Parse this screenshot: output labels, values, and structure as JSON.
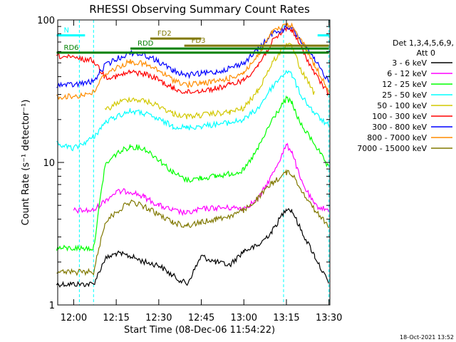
{
  "chart_data": {
    "type": "line",
    "title": "RHESSI Observing Summary Count Rates",
    "xlabel": "Start Time (08-Dec-06 11:54:22)",
    "ylabel": "Count Rate (s⁻¹ detector⁻¹)",
    "y_scale": "log",
    "ylim": [
      1,
      100
    ],
    "xlim": [
      "11:54:22",
      "13:30:20"
    ],
    "x_ticks": [
      "12:00",
      "12:15",
      "12:30",
      "12:45",
      "13:00",
      "13:15",
      "13:30"
    ],
    "y_ticks": [
      "1",
      "10",
      "100"
    ],
    "det_label": "Det 1,3,4,5,6,9,",
    "att_label": "Att 0",
    "timestamp": "18-Oct-2021 13:52",
    "series": [
      {
        "name": "3 - 6 keV",
        "color": "#000000",
        "points": [
          [
            "11:54",
            1.4
          ],
          [
            "12:00",
            1.4
          ],
          [
            "12:07",
            1.4
          ],
          [
            "12:11",
            2.1
          ],
          [
            "12:15",
            2.3
          ],
          [
            "12:20",
            2.2
          ],
          [
            "12:25",
            2.0
          ],
          [
            "12:30",
            1.9
          ],
          [
            "12:35",
            1.6
          ],
          [
            "12:40",
            1.4
          ],
          [
            "12:45",
            2.2
          ],
          [
            "12:50",
            2.0
          ],
          [
            "12:55",
            1.9
          ],
          [
            "13:00",
            2.4
          ],
          [
            "13:05",
            2.6
          ],
          [
            "13:10",
            3.3
          ],
          [
            "13:15",
            4.8
          ],
          [
            "13:17",
            4.6
          ],
          [
            "13:20",
            3.4
          ],
          [
            "13:25",
            2.2
          ],
          [
            "13:30",
            1.4
          ]
        ]
      },
      {
        "name": "6 - 12 keV",
        "color": "#ff00ff",
        "points": [
          [
            "12:00",
            4.6
          ],
          [
            "12:07",
            4.6
          ],
          [
            "12:11",
            5.4
          ],
          [
            "12:15",
            6.2
          ],
          [
            "12:20",
            6.3
          ],
          [
            "12:25",
            5.7
          ],
          [
            "12:30",
            5.0
          ],
          [
            "12:35",
            4.6
          ],
          [
            "12:40",
            4.4
          ],
          [
            "12:45",
            4.7
          ],
          [
            "12:50",
            4.8
          ],
          [
            "12:55",
            4.8
          ],
          [
            "13:00",
            4.8
          ],
          [
            "13:05",
            5.5
          ],
          [
            "13:10",
            8.2
          ],
          [
            "13:15",
            13.2
          ],
          [
            "13:17",
            12.0
          ],
          [
            "13:20",
            7.5
          ],
          [
            "13:25",
            5.0
          ],
          [
            "13:30",
            4.6
          ]
        ]
      },
      {
        "name": "12 - 25 keV",
        "color": "#00ff00",
        "points": [
          [
            "11:54",
            2.5
          ],
          [
            "12:00",
            2.5
          ],
          [
            "12:07",
            2.5
          ],
          [
            "12:11",
            9.5
          ],
          [
            "12:15",
            11.5
          ],
          [
            "12:20",
            13.0
          ],
          [
            "12:25",
            12.5
          ],
          [
            "12:30",
            10.5
          ],
          [
            "12:35",
            8.5
          ],
          [
            "12:40",
            7.5
          ],
          [
            "12:45",
            7.8
          ],
          [
            "12:50",
            8.0
          ],
          [
            "12:55",
            8.3
          ],
          [
            "13:00",
            8.8
          ],
          [
            "13:05",
            12.5
          ],
          [
            "13:10",
            20.0
          ],
          [
            "13:15",
            28.0
          ],
          [
            "13:17",
            26.0
          ],
          [
            "13:20",
            18.5
          ],
          [
            "13:25",
            13.5
          ],
          [
            "13:30",
            9.0
          ]
        ]
      },
      {
        "name": "25 - 50 keV",
        "color": "#00ffff",
        "points": [
          [
            "11:54",
            13.5
          ],
          [
            "12:00",
            12.5
          ],
          [
            "12:07",
            15.0
          ],
          [
            "12:11",
            19.0
          ],
          [
            "12:15",
            21.0
          ],
          [
            "12:20",
            23.0
          ],
          [
            "12:25",
            22.0
          ],
          [
            "12:30",
            20.0
          ],
          [
            "12:35",
            18.0
          ],
          [
            "12:40",
            17.5
          ],
          [
            "12:45",
            18.0
          ],
          [
            "12:50",
            18.5
          ],
          [
            "12:55",
            19.0
          ],
          [
            "13:00",
            20.0
          ],
          [
            "13:05",
            24.0
          ],
          [
            "13:10",
            34.0
          ],
          [
            "13:15",
            44.0
          ],
          [
            "13:17",
            41.0
          ],
          [
            "13:20",
            30.0
          ],
          [
            "13:25",
            22.0
          ],
          [
            "13:30",
            18.0
          ]
        ]
      },
      {
        "name": "50 - 100 keV",
        "color": "#d2c800",
        "points": [
          [
            "12:11",
            23.0
          ],
          [
            "12:15",
            26.0
          ],
          [
            "12:20",
            28.0
          ],
          [
            "12:25",
            27.0
          ],
          [
            "12:30",
            25.0
          ],
          [
            "12:35",
            22.0
          ],
          [
            "12:40",
            21.0
          ],
          [
            "12:45",
            21.5
          ],
          [
            "12:50",
            22.0
          ],
          [
            "12:55",
            22.5
          ],
          [
            "13:00",
            24.0
          ],
          [
            "13:05",
            32.0
          ],
          [
            "13:10",
            50.0
          ],
          [
            "13:15",
            68.0
          ],
          [
            "13:17",
            64.0
          ],
          [
            "13:20",
            45.0
          ],
          [
            "13:25",
            30.0
          ]
        ]
      },
      {
        "name": "100 - 300 keV",
        "color": "#ff0000",
        "points": [
          [
            "11:54",
            56.0
          ],
          [
            "12:00",
            54.0
          ],
          [
            "12:07",
            52.0
          ],
          [
            "12:11",
            40.0
          ],
          [
            "12:15",
            40.0
          ],
          [
            "12:20",
            43.0
          ],
          [
            "12:25",
            42.0
          ],
          [
            "12:30",
            38.0
          ],
          [
            "12:35",
            33.0
          ],
          [
            "12:40",
            31.0
          ],
          [
            "12:45",
            32.0
          ],
          [
            "12:50",
            33.0
          ],
          [
            "12:55",
            35.0
          ],
          [
            "13:00",
            38.0
          ],
          [
            "13:05",
            48.0
          ],
          [
            "13:10",
            70.0
          ],
          [
            "13:15",
            88.0
          ],
          [
            "13:17",
            85.0
          ],
          [
            "13:20",
            65.0
          ],
          [
            "13:25",
            42.0
          ],
          [
            "13:30",
            30.0
          ]
        ]
      },
      {
        "name": "300 - 800 keV",
        "color": "#0000ff",
        "points": [
          [
            "11:54",
            35.0
          ],
          [
            "12:00",
            35.0
          ],
          [
            "12:07",
            37.0
          ],
          [
            "12:11",
            48.0
          ],
          [
            "12:15",
            53.0
          ],
          [
            "12:20",
            59.0
          ],
          [
            "12:25",
            57.0
          ],
          [
            "12:30",
            51.0
          ],
          [
            "12:35",
            44.0
          ],
          [
            "12:40",
            41.0
          ],
          [
            "12:45",
            42.0
          ],
          [
            "12:50",
            43.0
          ],
          [
            "12:55",
            46.0
          ],
          [
            "13:00",
            50.0
          ],
          [
            "13:05",
            62.0
          ],
          [
            "13:10",
            80.0
          ],
          [
            "13:15",
            88.0
          ],
          [
            "13:17",
            87.0
          ],
          [
            "13:20",
            72.0
          ],
          [
            "13:25",
            52.0
          ],
          [
            "13:30",
            37.0
          ]
        ]
      },
      {
        "name": "800 - 7000 keV",
        "color": "#ff8c00",
        "points": [
          [
            "11:54",
            29.0
          ],
          [
            "12:00",
            29.0
          ],
          [
            "12:07",
            31.0
          ],
          [
            "12:11",
            42.0
          ],
          [
            "12:15",
            46.0
          ],
          [
            "12:20",
            51.0
          ],
          [
            "12:25",
            49.0
          ],
          [
            "12:30",
            44.0
          ],
          [
            "12:35",
            38.0
          ],
          [
            "12:40",
            35.0
          ],
          [
            "12:45",
            36.0
          ],
          [
            "12:50",
            37.0
          ],
          [
            "12:55",
            39.0
          ],
          [
            "13:00",
            43.0
          ],
          [
            "13:05",
            56.0
          ],
          [
            "13:10",
            82.0
          ],
          [
            "13:15",
            92.0
          ],
          [
            "13:17",
            90.0
          ],
          [
            "13:20",
            74.0
          ],
          [
            "13:25",
            48.0
          ],
          [
            "13:30",
            32.0
          ]
        ]
      },
      {
        "name": "7000 - 15000 keV",
        "color": "#807800",
        "points": [
          [
            "11:54",
            1.7
          ],
          [
            "12:00",
            1.7
          ],
          [
            "12:07",
            1.7
          ],
          [
            "12:11",
            3.8
          ],
          [
            "12:15",
            4.5
          ],
          [
            "12:20",
            5.3
          ],
          [
            "12:25",
            4.9
          ],
          [
            "12:30",
            4.3
          ],
          [
            "12:35",
            3.8
          ],
          [
            "12:40",
            3.6
          ],
          [
            "12:45",
            3.8
          ],
          [
            "12:50",
            4.0
          ],
          [
            "12:55",
            4.2
          ],
          [
            "13:00",
            4.6
          ],
          [
            "13:05",
            5.6
          ],
          [
            "13:10",
            7.2
          ],
          [
            "13:15",
            8.5
          ],
          [
            "13:17",
            8.3
          ],
          [
            "13:20",
            6.6
          ],
          [
            "13:25",
            4.6
          ],
          [
            "13:30",
            3.6
          ]
        ]
      }
    ],
    "annotations": [
      {
        "label": "N",
        "color": "#00ffff",
        "start": "11:54",
        "end": "12:04",
        "level": 78
      },
      {
        "label": "",
        "color": "#00ffff",
        "start": "13:26",
        "end": "13:30",
        "level": 78
      },
      {
        "label": "FD2",
        "color": "#807800",
        "start": "12:27",
        "end": "12:45",
        "level": 74
      },
      {
        "label": "FD3",
        "color": "#807800",
        "start": "12:39",
        "end": "13:30",
        "level": 66
      },
      {
        "label": "RDD",
        "color": "#008000",
        "start": "12:20",
        "end": "13:30",
        "level": 63
      },
      {
        "label": "RD6",
        "color": "#008000",
        "start": "11:54",
        "end": "13:30",
        "level": 59
      }
    ],
    "vlines": [
      {
        "time": "12:02",
        "color": "#00ffff"
      },
      {
        "time": "12:07",
        "color": "#00ffff"
      },
      {
        "time": "13:14",
        "color": "#00ffff"
      },
      {
        "time": "13:30",
        "color": "#00ffff"
      }
    ]
  }
}
